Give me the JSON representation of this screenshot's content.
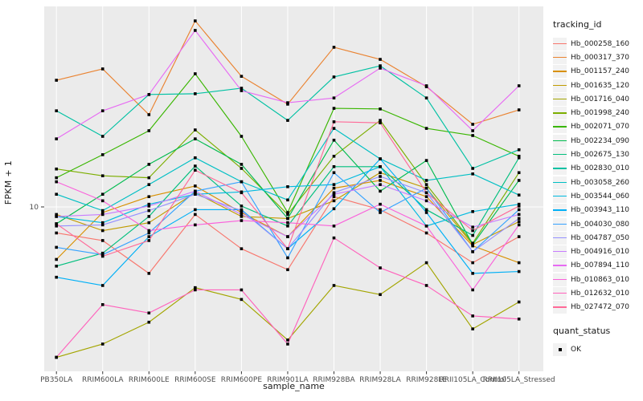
{
  "chart_data": {
    "type": "line",
    "title": "",
    "xlabel": "sample_name",
    "ylabel": "FPKM + 1",
    "legend_title": "tracking_id",
    "y_scale": "log10",
    "y_tick_labels": [
      "10"
    ],
    "y_axis_break_value": 10,
    "ylim_approx": [
      1.6,
      95
    ],
    "grid": "white-on-gray",
    "panel_bg": "#EBEBEB",
    "grid_color": "#FFFFFF",
    "point_color": "#000000",
    "point_shape": "square",
    "legend_position": "right",
    "categories": [
      "PB350LA",
      "RRIM600LA",
      "RRIM600LE",
      "RRIM600SE",
      "RRIM600PE",
      "RRIM901LA",
      "RRIM928BA",
      "RRIM928LA",
      "RRIM928LE",
      "RRII105LA_Control",
      "RRII105LA_Stressed"
    ],
    "series": [
      {
        "name": "Hb_000258_160",
        "color": "#F8766D",
        "values": [
          7.5,
          6.9,
          4.8,
          9.2,
          6.3,
          5.0,
          11.2,
          9.7,
          7.5,
          5.4,
          7.2
        ]
      },
      {
        "name": "Hb_000317_370",
        "color": "#EA8331",
        "values": [
          40.5,
          45.9,
          27.7,
          78.0,
          42.3,
          31.1,
          58.3,
          51.0,
          37.7,
          24.9,
          29.2
        ]
      },
      {
        "name": "Hb_001157_240",
        "color": "#D89000",
        "values": [
          5.6,
          9.4,
          11.2,
          12.6,
          9.4,
          7.2,
          12.3,
          13.4,
          11.2,
          6.5,
          5.4
        ]
      },
      {
        "name": "Hb_001635_120",
        "color": "#C09B00",
        "values": [
          9.2,
          7.7,
          8.4,
          11.7,
          9.0,
          8.8,
          10.7,
          14.6,
          12.3,
          6.6,
          8.5
        ]
      },
      {
        "name": "Hb_001716_040",
        "color": "#A3A500",
        "values": [
          1.9,
          2.2,
          2.8,
          4.1,
          3.6,
          2.3,
          4.2,
          3.8,
          5.4,
          2.6,
          3.5
        ]
      },
      {
        "name": "Hb_001998_240",
        "color": "#7CAE00",
        "values": [
          15.2,
          14.1,
          13.8,
          23.4,
          15.3,
          9.2,
          17.5,
          26.0,
          12.8,
          6.7,
          14.6
        ]
      },
      {
        "name": "Hb_002071_070",
        "color": "#39B600",
        "values": [
          13.8,
          17.8,
          23.2,
          43.5,
          21.8,
          9.4,
          29.7,
          29.5,
          23.8,
          22.0,
          17.5
        ]
      },
      {
        "name": "Hb_002234_090",
        "color": "#00BB4E",
        "values": [
          8.3,
          11.5,
          16.0,
          21.2,
          16.0,
          8.8,
          20.9,
          11.9,
          16.7,
          6.6,
          13.4
        ]
      },
      {
        "name": "Hb_002675_130",
        "color": "#00BF7D",
        "values": [
          5.2,
          6.0,
          9.0,
          15.7,
          10.1,
          8.1,
          15.6,
          15.6,
          9.7,
          7.3,
          17.2
        ]
      },
      {
        "name": "Hb_002830_010",
        "color": "#00C1A3",
        "values": [
          28.9,
          21.8,
          34.6,
          34.9,
          37.1,
          26.0,
          42.0,
          47.5,
          33.3,
          15.3,
          18.8
        ]
      },
      {
        "name": "Hb_003058_260",
        "color": "#00BFC4",
        "values": [
          11.5,
          9.6,
          12.8,
          17.2,
          13.2,
          10.8,
          23.8,
          17.0,
          13.4,
          14.4,
          11.4
        ]
      },
      {
        "name": "Hb_003544_060",
        "color": "#00BAE0",
        "values": [
          9.0,
          8.4,
          10.3,
          11.5,
          11.8,
          12.5,
          12.8,
          15.6,
          8.1,
          9.5,
          10.3
        ]
      },
      {
        "name": "Hb_003943_110",
        "color": "#00B0F6",
        "values": [
          4.6,
          4.2,
          7.2,
          9.7,
          9.7,
          6.3,
          9.8,
          17.0,
          9.4,
          4.8,
          4.9
        ]
      },
      {
        "name": "Hb_004030_080",
        "color": "#35A2FF",
        "values": [
          6.4,
          5.9,
          7.5,
          11.9,
          13.2,
          5.7,
          14.6,
          9.4,
          12.3,
          6.1,
          9.7
        ]
      },
      {
        "name": "Hb_004787_050",
        "color": "#9590FF",
        "values": [
          8.1,
          8.2,
          9.6,
          11.5,
          9.6,
          6.3,
          11.7,
          14.0,
          11.7,
          6.1,
          8.8
        ]
      },
      {
        "name": "Hb_004916_010",
        "color": "#C77CFF",
        "values": [
          9.0,
          9.2,
          10.1,
          11.9,
          9.2,
          7.2,
          11.5,
          12.8,
          10.7,
          8.0,
          9.2
        ]
      },
      {
        "name": "Hb_007894_110",
        "color": "#E76BF3",
        "values": [
          21.2,
          28.9,
          34.6,
          70.2,
          36.1,
          31.6,
          33.3,
          46.3,
          38.1,
          23.2,
          38.1
        ]
      },
      {
        "name": "Hb_010863_010",
        "color": "#FA62DB",
        "values": [
          13.2,
          10.7,
          7.7,
          8.2,
          8.6,
          8.4,
          8.1,
          10.3,
          8.1,
          4.0,
          8.2
        ]
      },
      {
        "name": "Hb_012632_010",
        "color": "#FF62BC",
        "values": [
          1.9,
          3.4,
          3.1,
          4.0,
          4.0,
          2.2,
          7.1,
          5.1,
          4.2,
          3.0,
          2.9
        ]
      },
      {
        "name": "Hb_027472_070",
        "color": "#FF6A98",
        "values": [
          8.3,
          5.8,
          6.9,
          15.0,
          11.7,
          6.3,
          25.6,
          25.3,
          11.7,
          7.7,
          10.1
        ]
      }
    ],
    "quant_legend": {
      "title": "quant_status",
      "items": [
        "OK"
      ]
    }
  }
}
